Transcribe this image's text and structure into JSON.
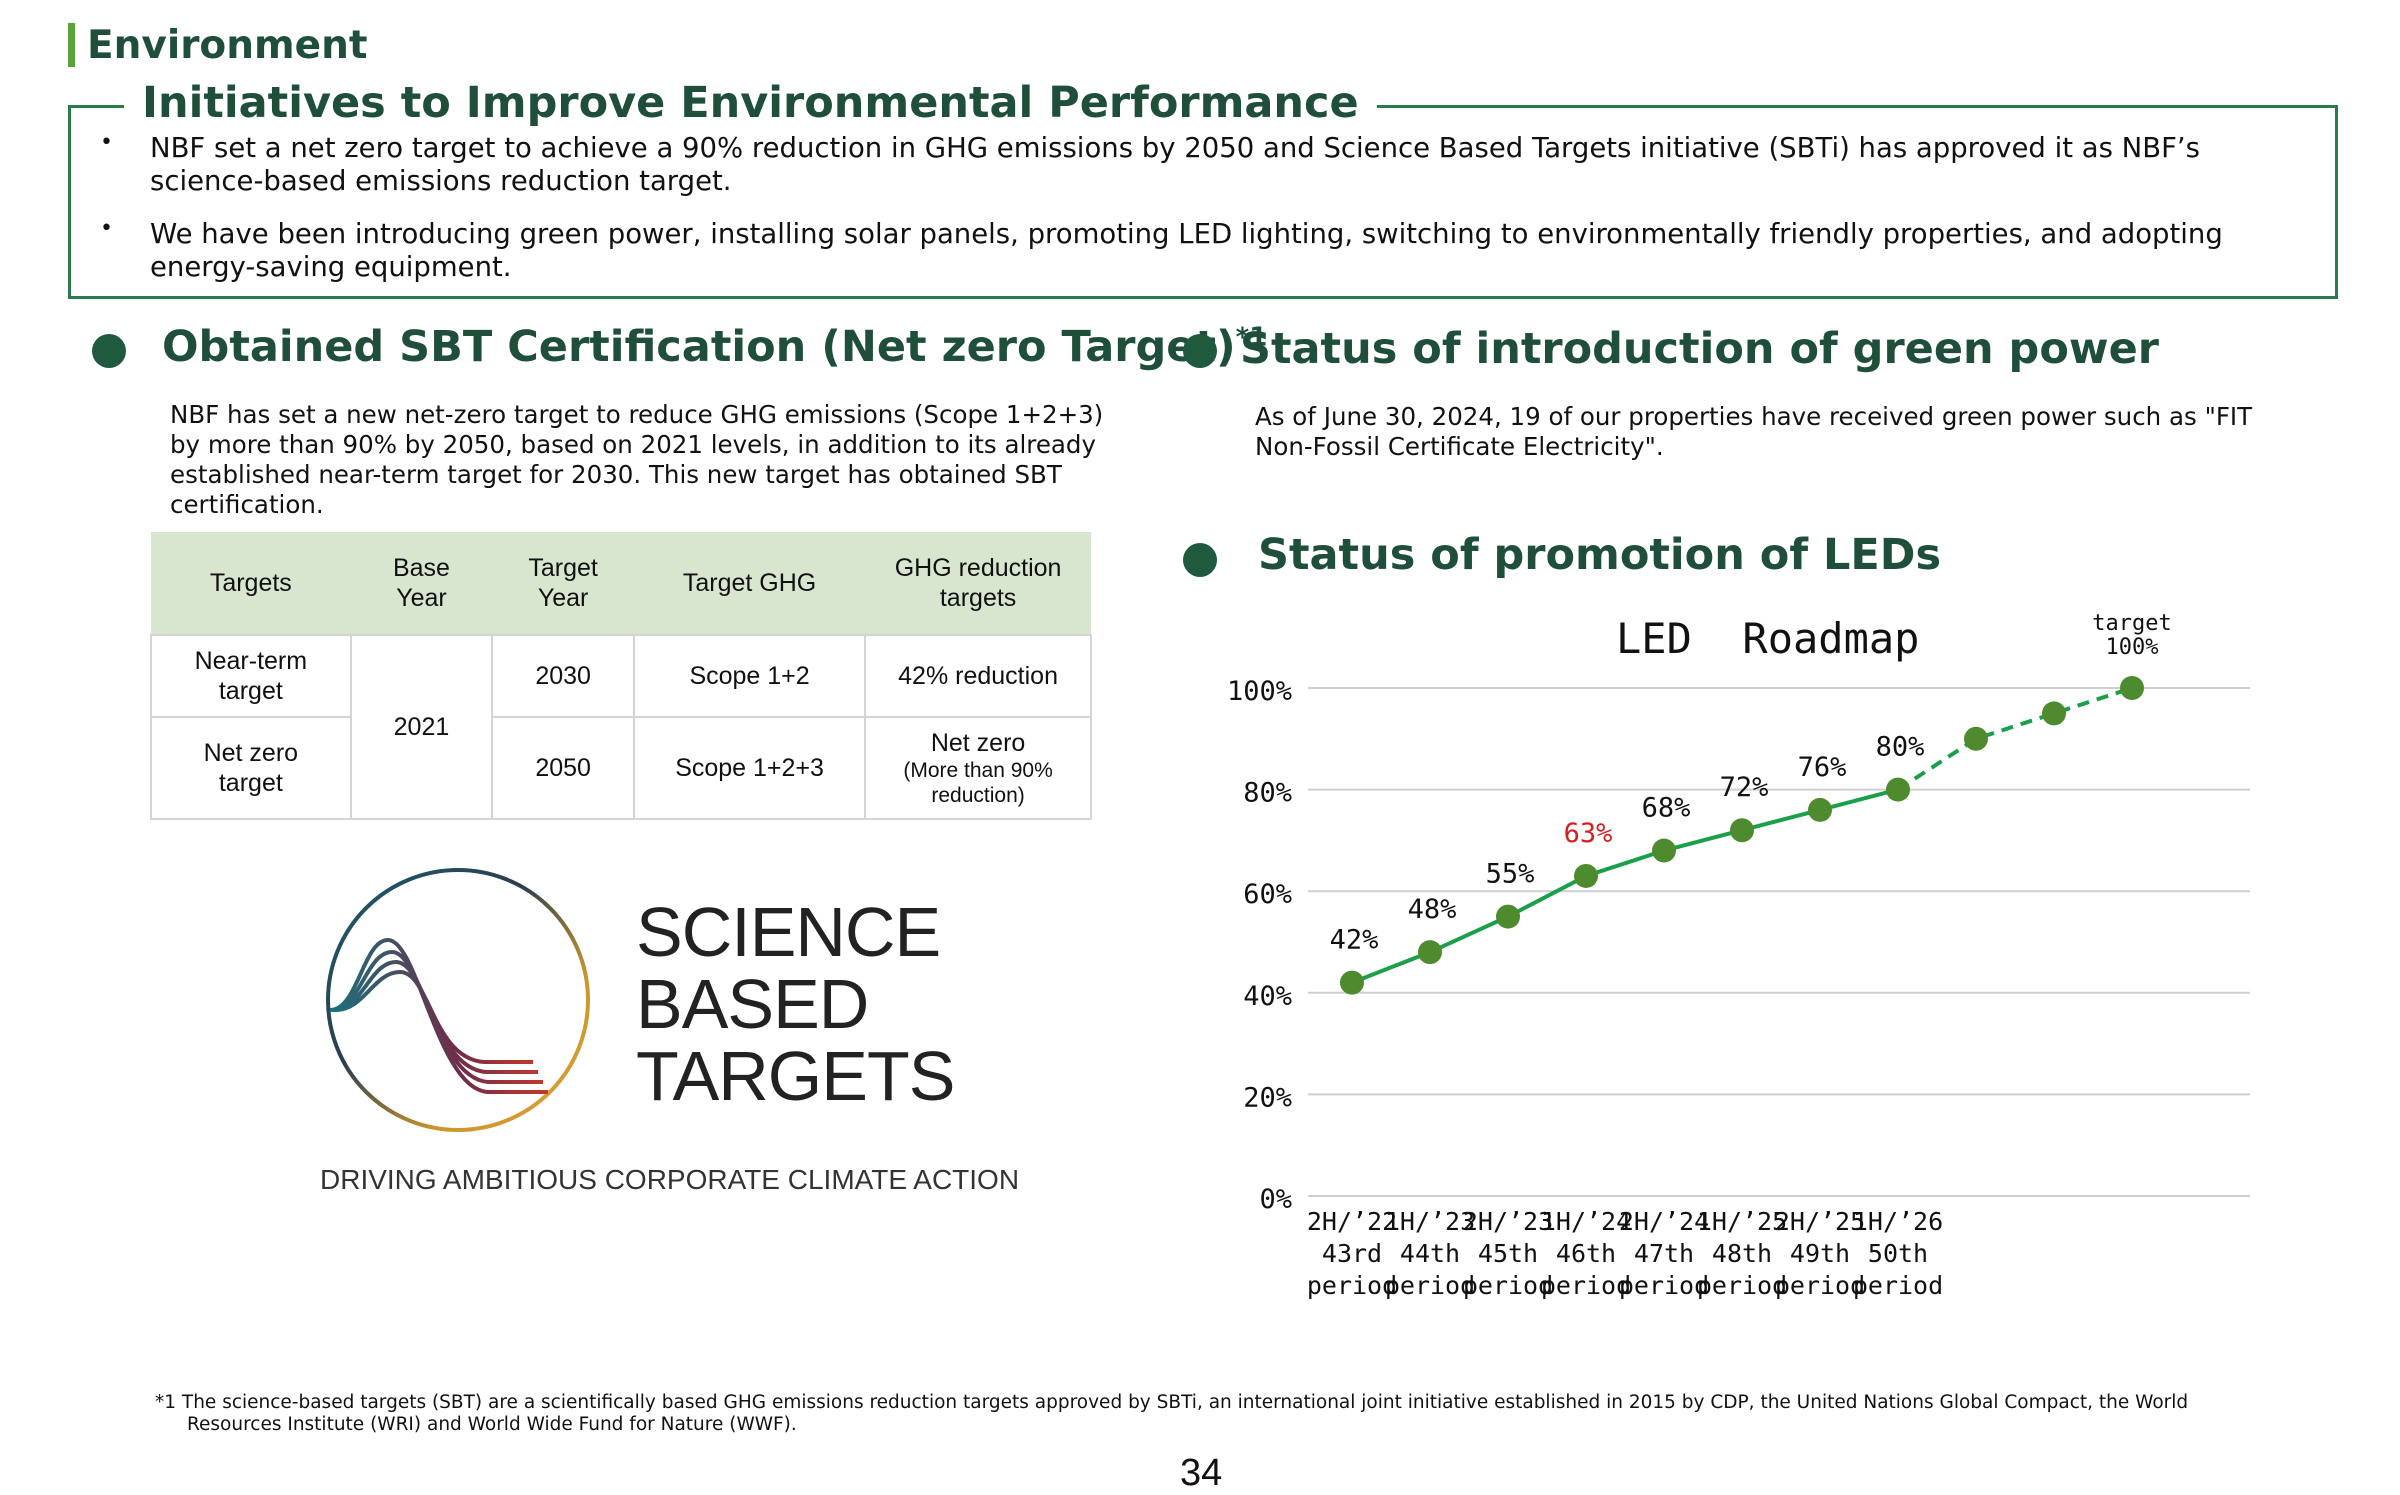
{
  "section": {
    "label": "Environment"
  },
  "initiatives": {
    "title": "Initiatives to Improve Environmental Performance",
    "bullets": [
      {
        "symbol": "•",
        "text": "NBF set a net zero target to achieve a 90% reduction in GHG emissions by 2050 and  Science Based Targets initiative (SBTi) has approved it as NBF’s science-based emissions reduction target."
      },
      {
        "symbol": "•",
        "text": "We have been introducing green power, installing solar panels, promoting LED lighting, switching to environmentally friendly properties, and adopting energy-saving equipment."
      }
    ]
  },
  "sbt": {
    "heading": "Obtained SBT Certification (Net zero Target)",
    "heading_mark": "*1",
    "description": "NBF has set a new net-zero target to reduce GHG emissions (Scope 1+2+3) by more than 90% by 2050, based on 2021 levels, in addition to its already established near-term target for 2030. This new target has obtained SBT certification.",
    "table": {
      "headers": [
        "Targets",
        "Base Year",
        "Target Year",
        "Target GHG",
        "GHG reduction targets"
      ],
      "base_year": "2021",
      "rows": [
        {
          "target": "Near-term target",
          "target_year": "2030",
          "ghg": "Scope 1+2",
          "reduction": "42% reduction",
          "reduction_note": ""
        },
        {
          "target": "Net zero target",
          "target_year": "2050",
          "ghg": "Scope 1+2+3",
          "reduction": "Net zero",
          "reduction_note": "(More than 90% reduction)"
        }
      ]
    },
    "logo": {
      "lines": [
        "SCIENCE",
        "BASED",
        "TARGETS"
      ],
      "tagline": "DRIVING AMBITIOUS CORPORATE CLIMATE ACTION"
    }
  },
  "green_power": {
    "heading": "Status of introduction of green power",
    "text": "As of June 30, 2024, 19 of our properties have received green power such as \"FIT Non-Fossil Certificate Electricity\"."
  },
  "led": {
    "heading": "Status of promotion of LEDs"
  },
  "chart_data": {
    "type": "line",
    "title": "LED  Roadmap",
    "xlabel": "",
    "ylabel": "",
    "ylim": [
      0,
      100
    ],
    "y_ticks": [
      "0%",
      "20%",
      "40%",
      "60%",
      "80%",
      "100%"
    ],
    "grid": true,
    "categories": [
      [
        "2H/’22",
        "43rd",
        "period"
      ],
      [
        "1H/’23",
        "44th",
        "period"
      ],
      [
        "2H/’23",
        "45th",
        "period"
      ],
      [
        "1H/’24",
        "46th",
        "period"
      ],
      [
        "2H/’24",
        "47th",
        "period"
      ],
      [
        "1H/’25",
        "48th",
        "period"
      ],
      [
        "2H/’25",
        "49th",
        "period"
      ],
      [
        "1H/’26",
        "50th",
        "period"
      ],
      [
        "",
        "",
        ""
      ],
      [
        "",
        "",
        ""
      ],
      [
        "",
        "",
        ""
      ]
    ],
    "series": [
      {
        "values": [
          42,
          48,
          55,
          63,
          68,
          72,
          76,
          80,
          90,
          95,
          100
        ],
        "labels": [
          "42%",
          "48%",
          "55%",
          "63%",
          "68%",
          "72%",
          "76%",
          "80%",
          "",
          "",
          "target\n100%"
        ],
        "solid_until_index": 7,
        "line_color": "#1aa04a",
        "marker_color": "#4e8a2e",
        "label_color": "#111111",
        "highlight_index": 3,
        "highlight_color": "#d42020"
      }
    ]
  },
  "footnote": "*1 The science-based targets (SBT) are a scientifically based GHG emissions reduction targets approved by SBTi, an international joint initiative established in 2015 by CDP, the United Nations Global Compact, the World Resources Institute (WRI) and World Wide Fund for Nature (WWF).",
  "page_number": "34"
}
